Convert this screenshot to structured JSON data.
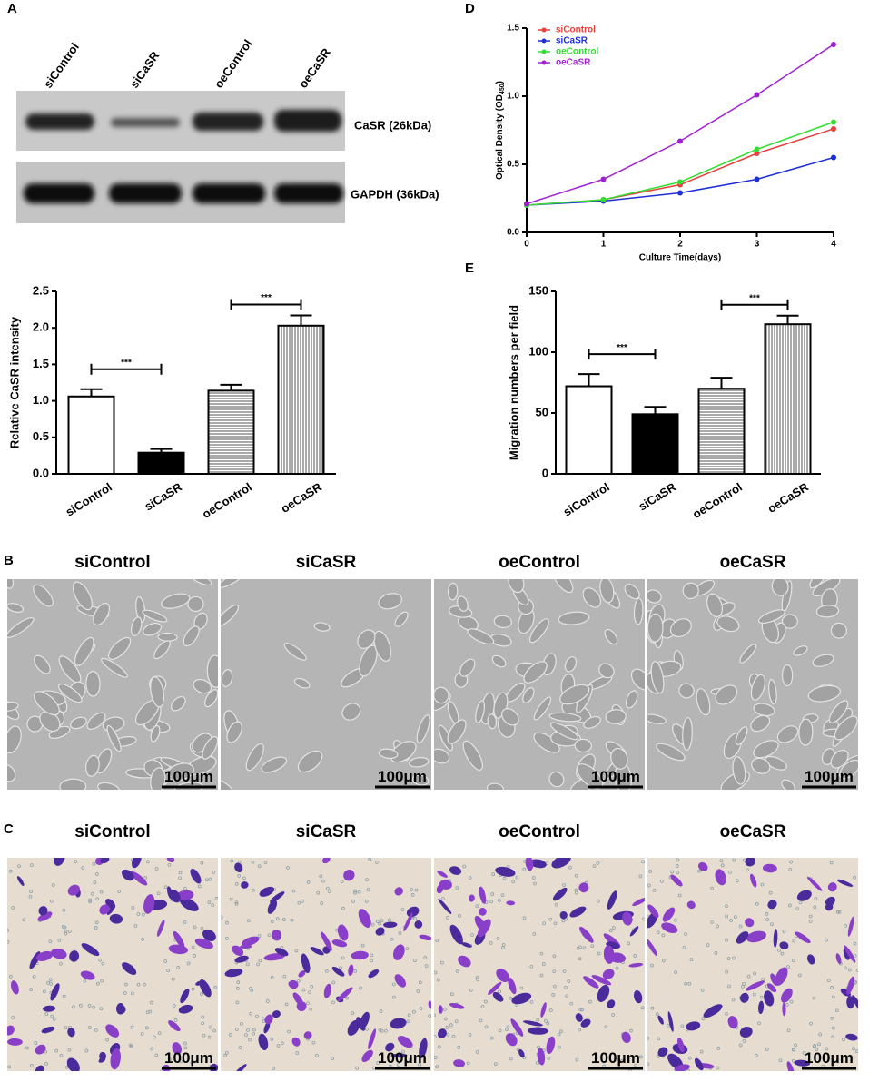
{
  "panel_labels": [
    "A",
    "B",
    "C",
    "D",
    "E"
  ],
  "blot": {
    "lanes": [
      "siControl",
      "siCaSR",
      "oeControl",
      "oeCaSR"
    ],
    "bands": [
      "CaSR (26kDa)",
      "GAPDH (36kDa)"
    ]
  },
  "chart_data": [
    {
      "type": "bar",
      "ylabel": "Relative CaSR intensity",
      "categories": [
        "siControl",
        "siCaSR",
        "oeControl",
        "oeCaSR"
      ],
      "values": [
        1.06,
        0.29,
        1.14,
        2.03
      ],
      "errors": [
        0.1,
        0.05,
        0.08,
        0.14
      ],
      "bar_styles": [
        "white",
        "black",
        "horizontal-hatch",
        "vertical-hatch"
      ],
      "ylim": [
        0,
        2.5
      ],
      "yticks": [
        {
          "value": 0,
          "label": "0.0"
        },
        {
          "value": 0.5,
          "label": "0.5"
        },
        {
          "value": 1,
          "label": "1.0"
        },
        {
          "value": 1.5,
          "label": "1.5"
        },
        {
          "value": 2,
          "label": "2.0"
        },
        {
          "value": 2.5,
          "label": "2.5"
        }
      ],
      "annotations": [
        {
          "text": "***",
          "between": [
            0,
            1
          ]
        },
        {
          "text": "***",
          "between": [
            2,
            3
          ]
        }
      ]
    },
    {
      "type": "line",
      "xlabel": "Culture Time(days)",
      "ylabel": {
        "text": "Optical Density (OD",
        "sub": "450",
        "end": ")"
      },
      "x": [
        0,
        1,
        2,
        3,
        4
      ],
      "series": [
        {
          "name": "siControl",
          "color": "#e8413c",
          "values": [
            0.2,
            0.24,
            0.35,
            0.58,
            0.76
          ]
        },
        {
          "name": "siCaSR",
          "color": "#1f2fd6",
          "values": [
            0.2,
            0.23,
            0.29,
            0.39,
            0.55
          ]
        },
        {
          "name": "oeControl",
          "color": "#33dd33",
          "values": [
            0.2,
            0.24,
            0.37,
            0.61,
            0.81
          ]
        },
        {
          "name": "oeCaSR",
          "color": "#a020d0",
          "values": [
            0.21,
            0.39,
            0.67,
            1.01,
            1.38
          ]
        }
      ],
      "xlim": [
        0,
        4
      ],
      "xticks": [
        0,
        1,
        2,
        3,
        4
      ],
      "ylim": [
        0,
        1.5
      ],
      "yticks": [
        {
          "value": 0,
          "label": "0.0"
        },
        {
          "value": 0.5,
          "label": "0.5"
        },
        {
          "value": 1,
          "label": "1.0"
        },
        {
          "value": 1.5,
          "label": "1.5"
        }
      ],
      "legend": "top-left"
    },
    {
      "type": "bar",
      "ylabel": "Migration numbers per field",
      "categories": [
        "siControl",
        "siCaSR",
        "oeControl",
        "oeCaSR"
      ],
      "values": [
        72,
        49,
        70,
        123
      ],
      "errors": [
        10,
        6,
        9,
        7
      ],
      "bar_styles": [
        "white",
        "black",
        "horizontal-hatch",
        "vertical-hatch"
      ],
      "ylim": [
        0,
        150
      ],
      "yticks": [
        0,
        50,
        100,
        150
      ],
      "annotations": [
        {
          "text": "***",
          "between": [
            0,
            1
          ]
        },
        {
          "text": "***",
          "between": [
            2,
            3
          ]
        }
      ]
    }
  ],
  "micrographs": {
    "B": {
      "titles": [
        "siControl",
        "siCaSR",
        "oeControl",
        "oeCaSR"
      ],
      "scale_bar": "100μm"
    },
    "C": {
      "titles": [
        "siControl",
        "siCaSR",
        "oeControl",
        "oeCaSR"
      ],
      "scale_bar": "100μm"
    }
  }
}
